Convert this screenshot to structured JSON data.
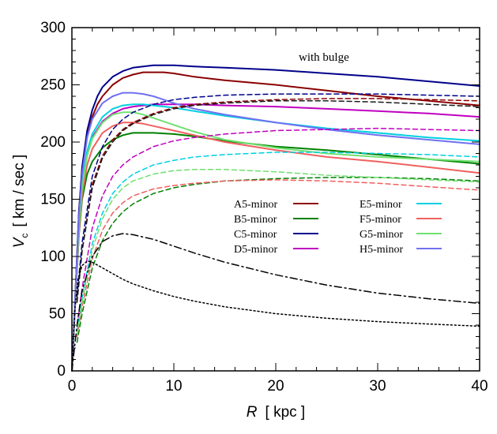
{
  "chart_data": {
    "type": "line",
    "title": "",
    "annotation": "with bulge",
    "xlabel": "R",
    "xlabel_unit": "[ kpc ]",
    "ylabel": "V",
    "ylabel_sub": "c",
    "ylabel_unit": "[ km / sec ]",
    "xlim": [
      0,
      40
    ],
    "ylim": [
      0,
      300
    ],
    "xticks": [
      0,
      10,
      20,
      30,
      40
    ],
    "yticks": [
      0,
      50,
      100,
      150,
      200,
      250,
      300
    ],
    "grid": false,
    "legend_position": "center-right",
    "series": [
      {
        "name": "A5-minor",
        "color": "#8b0000",
        "style": "solid",
        "x": [
          0,
          0.3,
          0.7,
          1,
          1.5,
          2,
          2.5,
          3,
          4,
          5,
          6,
          7,
          8,
          9,
          10,
          12,
          15,
          20,
          25,
          30,
          35,
          40
        ],
        "y": [
          0,
          60,
          140,
          175,
          205,
          222,
          233,
          240,
          250,
          256,
          259,
          261,
          261,
          261,
          260,
          257,
          254,
          250,
          245,
          240,
          236,
          232
        ]
      },
      {
        "name": "B5-minor",
        "color": "#008000",
        "style": "solid",
        "x": [
          0,
          0.3,
          0.7,
          1,
          1.5,
          2,
          3,
          4,
          5,
          6,
          7,
          8,
          10,
          12,
          15,
          20,
          25,
          30,
          35,
          40
        ],
        "y": [
          0,
          55,
          120,
          150,
          172,
          183,
          195,
          202,
          206,
          208,
          208,
          208,
          207,
          205,
          201,
          196,
          193,
          189,
          185,
          181
        ]
      },
      {
        "name": "C5-minor",
        "color": "#00008b",
        "style": "solid",
        "x": [
          0,
          0.3,
          0.7,
          1,
          1.5,
          2,
          2.5,
          3,
          4,
          5,
          6,
          7,
          8,
          9,
          10,
          12,
          15,
          20,
          25,
          30,
          35,
          40
        ],
        "y": [
          0,
          60,
          140,
          178,
          210,
          228,
          240,
          248,
          257,
          262,
          265,
          266,
          267,
          267,
          267,
          266,
          265,
          263,
          260,
          257,
          253,
          249
        ]
      },
      {
        "name": "D5-minor",
        "color": "#c000c0",
        "style": "solid",
        "x": [
          0,
          0.3,
          0.7,
          1,
          1.5,
          2,
          3,
          4,
          5,
          6,
          7,
          8,
          9,
          10,
          12,
          15,
          20,
          25,
          30,
          35,
          40
        ],
        "y": [
          0,
          58,
          128,
          162,
          190,
          204,
          218,
          225,
          229,
          231,
          232,
          233,
          233,
          233,
          233,
          232,
          231,
          229,
          227,
          225,
          222
        ]
      },
      {
        "name": "E5-minor",
        "color": "#00d0e0",
        "style": "solid",
        "x": [
          0,
          0.3,
          0.7,
          1,
          1.5,
          2,
          3,
          4,
          5,
          6,
          7,
          8,
          10,
          12,
          15,
          20,
          25,
          30,
          35,
          40
        ],
        "y": [
          0,
          58,
          130,
          164,
          192,
          207,
          222,
          229,
          232,
          233,
          233,
          232,
          230,
          227,
          223,
          217,
          212,
          208,
          204,
          201
        ]
      },
      {
        "name": "F5-minor",
        "color": "#f06060",
        "style": "solid",
        "x": [
          0,
          0.3,
          0.7,
          1,
          1.5,
          2,
          3,
          4,
          5,
          6,
          7,
          8,
          10,
          12,
          15,
          20,
          25,
          30,
          35,
          40
        ],
        "y": [
          0,
          55,
          122,
          154,
          180,
          194,
          208,
          214,
          217,
          217,
          216,
          214,
          210,
          206,
          200,
          193,
          187,
          183,
          178,
          173
        ]
      },
      {
        "name": "G5-minor",
        "color": "#70e070",
        "style": "solid",
        "x": [
          0,
          0.3,
          0.7,
          1,
          1.5,
          2,
          3,
          4,
          5,
          6,
          7,
          8,
          10,
          12,
          15,
          20,
          25,
          30,
          35,
          40
        ],
        "y": [
          0,
          57,
          126,
          160,
          188,
          203,
          217,
          224,
          226,
          226,
          224,
          221,
          215,
          209,
          202,
          195,
          190,
          187,
          185,
          183
        ]
      },
      {
        "name": "H5-minor",
        "color": "#7070f0",
        "style": "solid",
        "x": [
          0,
          0.3,
          0.7,
          1,
          1.5,
          2,
          3,
          4,
          5,
          6,
          7,
          8,
          9,
          10,
          12,
          15,
          20,
          25,
          30,
          35,
          40
        ],
        "y": [
          0,
          60,
          136,
          172,
          204,
          220,
          234,
          240,
          243,
          243,
          242,
          240,
          237,
          234,
          229,
          224,
          217,
          211,
          206,
          202,
          198
        ]
      },
      {
        "name": "",
        "color": "#8b0000",
        "style": "dashed",
        "x": [
          0.5,
          1,
          2,
          3,
          4,
          5,
          6,
          8,
          10,
          12,
          15,
          20,
          25,
          30,
          35,
          40
        ],
        "y": [
          60,
          105,
          163,
          188,
          202,
          211,
          217,
          225,
          230,
          233,
          235,
          237,
          238,
          238,
          237,
          236
        ]
      },
      {
        "name": "",
        "color": "#008000",
        "style": "dashed",
        "x": [
          0.5,
          1,
          2,
          3,
          4,
          5,
          6,
          8,
          10,
          12,
          15,
          20,
          25,
          30,
          35,
          40
        ],
        "y": [
          25,
          50,
          90,
          114,
          129,
          139,
          146,
          155,
          160,
          163,
          166,
          168,
          169,
          169,
          168,
          166
        ]
      },
      {
        "name": "",
        "color": "#00008b",
        "style": "dashed",
        "x": [
          0.5,
          1,
          2,
          3,
          4,
          5,
          6,
          8,
          10,
          12,
          15,
          20,
          25,
          30,
          35,
          40
        ],
        "y": [
          65,
          112,
          170,
          196,
          211,
          220,
          226,
          233,
          237,
          239,
          241,
          242,
          242,
          242,
          241,
          240
        ]
      },
      {
        "name": "",
        "color": "#c000c0",
        "style": "dashed",
        "x": [
          0.5,
          1,
          2,
          3,
          4,
          5,
          6,
          8,
          10,
          12,
          15,
          20,
          25,
          30,
          35,
          40
        ],
        "y": [
          40,
          72,
          125,
          153,
          170,
          180,
          187,
          196,
          201,
          204,
          207,
          210,
          211,
          212,
          211,
          210
        ]
      },
      {
        "name": "",
        "color": "#00d0e0",
        "style": "dashed",
        "x": [
          0.5,
          1,
          2,
          3,
          4,
          5,
          6,
          8,
          10,
          12,
          15,
          20,
          25,
          30,
          35,
          40
        ],
        "y": [
          35,
          64,
          111,
          138,
          155,
          165,
          172,
          180,
          184,
          187,
          189,
          191,
          191,
          190,
          189,
          187
        ]
      },
      {
        "name": "",
        "color": "#f06060",
        "style": "dashed",
        "x": [
          0.5,
          1,
          2,
          3,
          4,
          5,
          6,
          8,
          10,
          12,
          15,
          20,
          25,
          30,
          35,
          40
        ],
        "y": [
          30,
          56,
          98,
          123,
          138,
          147,
          153,
          159,
          162,
          164,
          166,
          167,
          166,
          164,
          161,
          158
        ]
      },
      {
        "name": "",
        "color": "#70e070",
        "style": "dashed",
        "x": [
          0.5,
          1,
          2,
          3,
          4,
          5,
          6,
          8,
          10,
          12,
          15,
          20,
          25,
          30,
          35,
          40
        ],
        "y": [
          32,
          60,
          106,
          133,
          150,
          160,
          166,
          172,
          175,
          176,
          176,
          174,
          171,
          169,
          167,
          165
        ]
      },
      {
        "name": "",
        "color": "#1a1a1a",
        "style": "dashed",
        "x": [
          0.5,
          1,
          2,
          3,
          4,
          5,
          6,
          8,
          10,
          12,
          15,
          20,
          25,
          30,
          35,
          40
        ],
        "y": [
          60,
          105,
          160,
          186,
          200,
          210,
          216,
          224,
          229,
          232,
          234,
          236,
          236,
          235,
          233,
          231
        ]
      },
      {
        "name": "",
        "color": "#000000",
        "style": "dashdot",
        "x": [
          0,
          0.5,
          1,
          2,
          3,
          4,
          5,
          6,
          7,
          8,
          10,
          12,
          15,
          20,
          25,
          30,
          35,
          40
        ],
        "y": [
          0,
          40,
          70,
          100,
          113,
          118,
          120,
          119,
          117,
          115,
          109,
          103,
          95,
          84,
          75,
          68,
          63,
          59
        ]
      },
      {
        "name": "",
        "color": "#000000",
        "style": "dotted",
        "x": [
          0,
          0.3,
          0.6,
          1,
          1.5,
          2,
          3,
          4,
          5,
          6,
          8,
          10,
          12,
          15,
          20,
          25,
          30,
          35,
          40
        ],
        "y": [
          0,
          55,
          80,
          92,
          96,
          95,
          90,
          85,
          80,
          76,
          70,
          65,
          61,
          56,
          50,
          46,
          43,
          41,
          39
        ]
      }
    ]
  }
}
